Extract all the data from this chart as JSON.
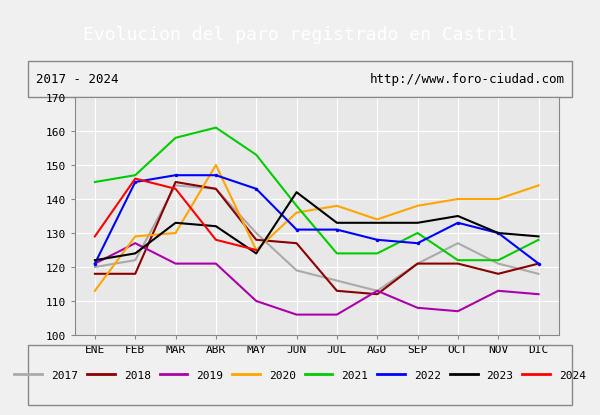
{
  "title": "Evolucion del paro registrado en Castril",
  "subtitle_left": "2017 - 2024",
  "subtitle_right": "http://www.foro-ciudad.com",
  "months": [
    "ENE",
    "FEB",
    "MAR",
    "ABR",
    "MAY",
    "JUN",
    "JUL",
    "AGO",
    "SEP",
    "OCT",
    "NOV",
    "DIC"
  ],
  "ylim": [
    100,
    170
  ],
  "yticks": [
    100,
    110,
    120,
    130,
    140,
    150,
    160,
    170
  ],
  "series": {
    "2017": {
      "color": "#aaaaaa",
      "values": [
        120,
        122,
        144,
        143,
        130,
        119,
        116,
        113,
        121,
        127,
        121,
        118
      ]
    },
    "2018": {
      "color": "#8b0000",
      "values": [
        118,
        118,
        145,
        143,
        128,
        127,
        113,
        112,
        121,
        121,
        118,
        121
      ]
    },
    "2019": {
      "color": "#aa00aa",
      "values": [
        121,
        127,
        121,
        121,
        110,
        106,
        106,
        113,
        108,
        107,
        113,
        112
      ]
    },
    "2020": {
      "color": "#ffa500",
      "values": [
        113,
        129,
        130,
        150,
        125,
        136,
        138,
        134,
        138,
        140,
        140,
        144
      ]
    },
    "2021": {
      "color": "#00cc00",
      "values": [
        145,
        147,
        158,
        161,
        153,
        138,
        124,
        124,
        130,
        122,
        122,
        128
      ]
    },
    "2022": {
      "color": "#0000ff",
      "values": [
        121,
        145,
        147,
        147,
        143,
        131,
        131,
        128,
        127,
        133,
        130,
        121
      ]
    },
    "2023": {
      "color": "#000000",
      "values": [
        122,
        124,
        133,
        132,
        124,
        142,
        133,
        133,
        133,
        135,
        130,
        129
      ]
    },
    "2024": {
      "color": "#ff0000",
      "values": [
        129,
        146,
        143,
        128,
        125
      ]
    }
  },
  "year_list": [
    "2017",
    "2018",
    "2019",
    "2020",
    "2021",
    "2022",
    "2023",
    "2024"
  ],
  "background_color": "#f0f0f0",
  "plot_bg_color": "#e8e8e8",
  "title_bg_color": "#4472c4",
  "title_text_color": "#ffffff",
  "grid_color": "#ffffff"
}
